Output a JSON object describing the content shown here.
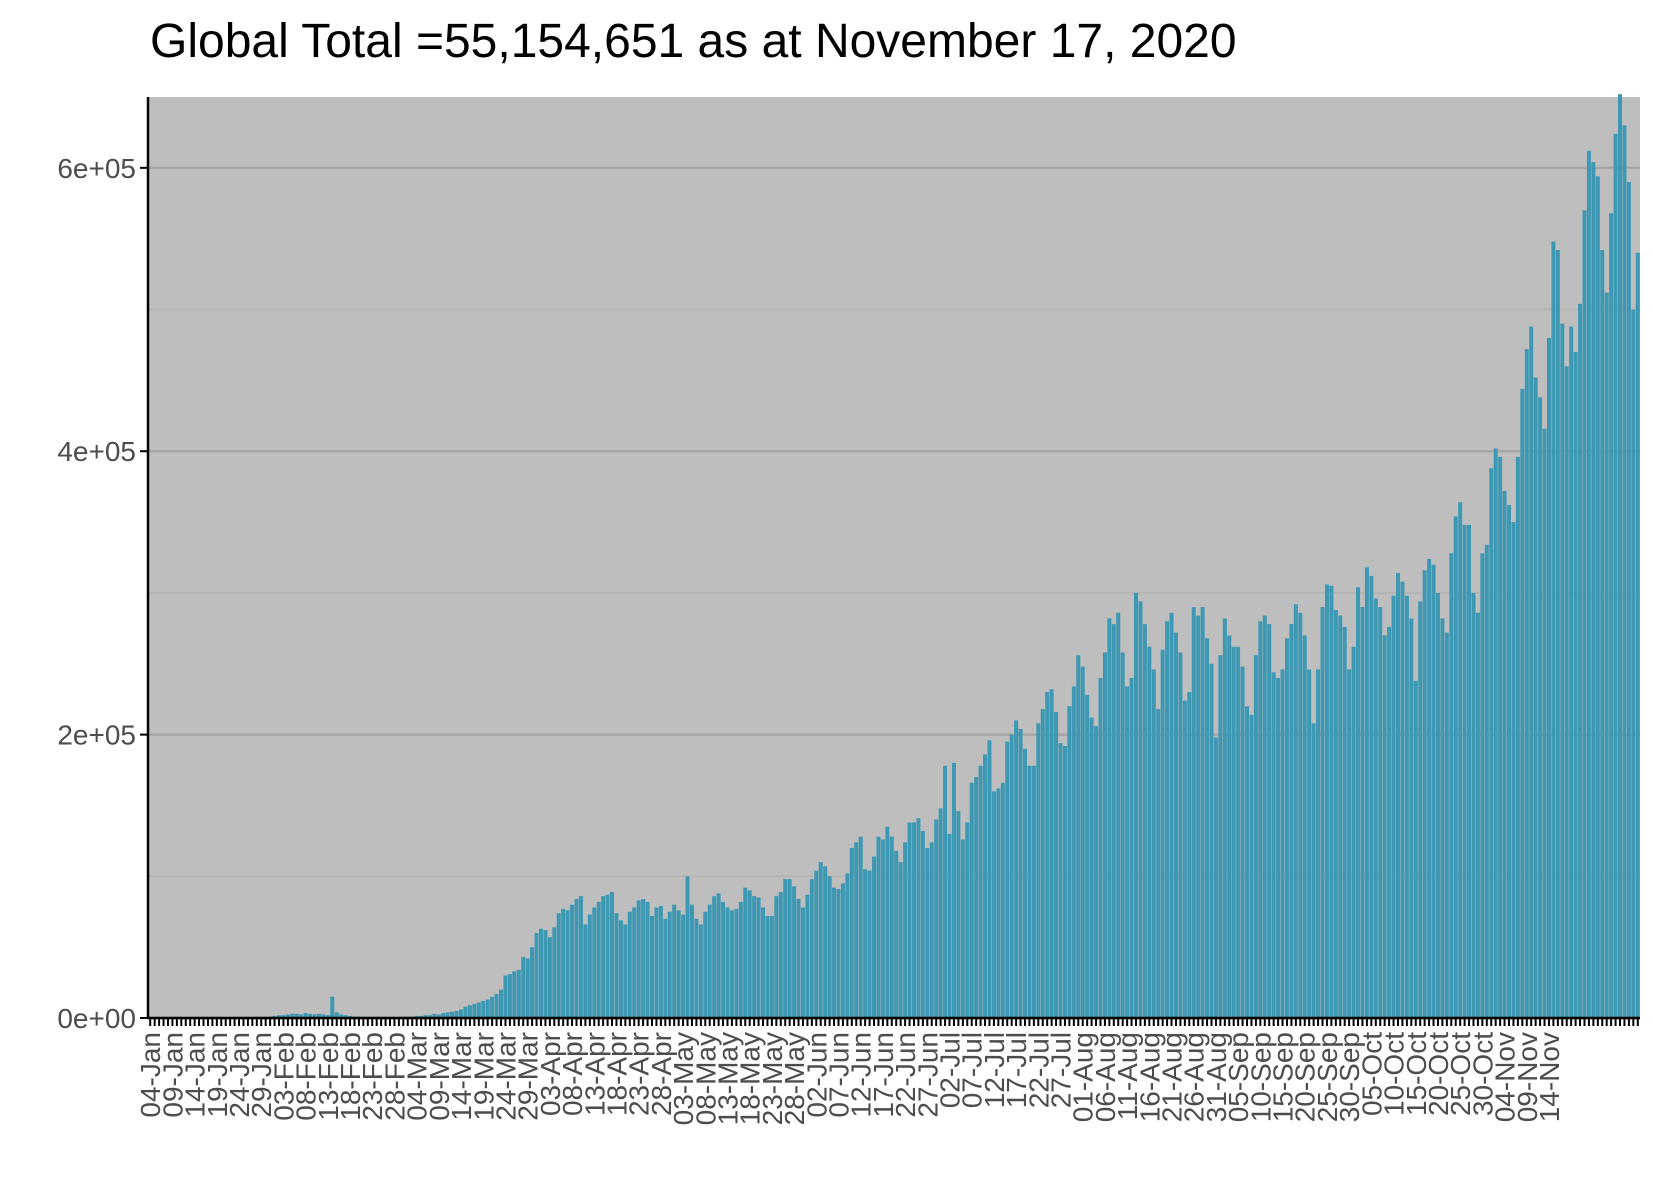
{
  "chart_data": {
    "type": "bar",
    "title": "Global Total =55,154,651 as at November 17, 2020",
    "xlabel": "",
    "ylabel": "",
    "ylim": [
      0,
      650000
    ],
    "y_ticks": [
      0,
      200000,
      400000,
      600000
    ],
    "y_tick_labels": [
      "0e+00",
      "2e+05",
      "4e+05",
      "6e+05"
    ],
    "grid": true,
    "legend": "none",
    "colors": {
      "bar": "#3d98b3",
      "panel": "#bebebe",
      "grid_major": "#a6a6a6",
      "grid_minor": "#b2b2b2",
      "axis": "#000000"
    },
    "x_start": "2020-01-04",
    "x_end": "2020-11-16",
    "x_tick_labels": [
      "04-Jan",
      "09-Jan",
      "14-Jan",
      "19-Jan",
      "24-Jan",
      "29-Jan",
      "03-Feb",
      "08-Feb",
      "13-Feb",
      "18-Feb",
      "23-Feb",
      "28-Feb",
      "04-Mar",
      "09-Mar",
      "14-Mar",
      "19-Mar",
      "24-Mar",
      "29-Mar",
      "03-Apr",
      "08-Apr",
      "13-Apr",
      "18-Apr",
      "23-Apr",
      "28-Apr",
      "03-May",
      "08-May",
      "13-May",
      "18-May",
      "23-May",
      "28-May",
      "02-Jun",
      "07-Jun",
      "12-Jun",
      "17-Jun",
      "22-Jun",
      "27-Jun",
      "02-Jul",
      "07-Jul",
      "12-Jul",
      "17-Jul",
      "22-Jul",
      "27-Jul",
      "01-Aug",
      "06-Aug",
      "11-Aug",
      "16-Aug",
      "21-Aug",
      "26-Aug",
      "31-Aug",
      "05-Sep",
      "10-Sep",
      "15-Sep",
      "20-Sep",
      "25-Sep",
      "30-Sep",
      "05-Oct",
      "10-Oct",
      "15-Oct",
      "20-Oct",
      "25-Oct",
      "30-Oct",
      "04-Nov",
      "09-Nov",
      "14-Nov"
    ],
    "series": [
      {
        "name": "",
        "values": [
          0,
          0,
          0,
          0,
          0,
          0,
          0,
          0,
          0,
          0,
          0,
          0,
          0,
          0,
          0,
          0,
          0,
          0,
          0,
          0,
          0,
          200,
          100,
          200,
          300,
          700,
          500,
          1000,
          1500,
          2000,
          2000,
          2500,
          3000,
          3000,
          2500,
          3500,
          3000,
          2500,
          3000,
          2500,
          2000,
          15000,
          4000,
          2500,
          2000,
          1500,
          1000,
          1000,
          500,
          500,
          500,
          500,
          500,
          500,
          500,
          500,
          500,
          1000,
          500,
          1000,
          1500,
          1500,
          2000,
          2000,
          3000,
          2500,
          3500,
          4000,
          4500,
          5000,
          6000,
          8000,
          9000,
          10000,
          11000,
          12000,
          13000,
          15000,
          17000,
          20000,
          30000,
          31000,
          33000,
          34000,
          43000,
          42000,
          50000,
          60000,
          63000,
          62000,
          57000,
          64000,
          74000,
          77000,
          76000,
          80000,
          84000,
          86000,
          66000,
          73000,
          78000,
          82000,
          86000,
          87000,
          89000,
          74000,
          69000,
          66000,
          75000,
          78000,
          83000,
          84000,
          82000,
          72000,
          78000,
          79000,
          70000,
          75000,
          80000,
          76000,
          73000,
          100000,
          80000,
          70000,
          66000,
          75000,
          80000,
          86000,
          88000,
          82000,
          78000,
          76000,
          77000,
          82000,
          92000,
          90000,
          86000,
          85000,
          78000,
          72000,
          72000,
          86000,
          89000,
          98000,
          98000,
          93000,
          84000,
          78000,
          87000,
          98000,
          104000,
          110000,
          107000,
          100000,
          92000,
          91000,
          95000,
          102000,
          120000,
          124000,
          128000,
          105000,
          104000,
          114000,
          128000,
          126000,
          135000,
          128000,
          118000,
          110000,
          124000,
          138000,
          138000,
          141000,
          132000,
          120000,
          124000,
          140000,
          148000,
          178000,
          130000,
          180000,
          146000,
          126000,
          138000,
          166000,
          170000,
          178000,
          186000,
          196000,
          160000,
          162000,
          166000,
          195000,
          200000,
          210000,
          204000,
          190000,
          178000,
          178000,
          208000,
          218000,
          230000,
          232000,
          216000,
          194000,
          192000,
          220000,
          234000,
          256000,
          248000,
          228000,
          212000,
          206000,
          240000,
          258000,
          282000,
          278000,
          286000,
          258000,
          234000,
          240000,
          300000,
          294000,
          278000,
          262000,
          246000,
          218000,
          260000,
          280000,
          286000,
          272000,
          258000,
          224000,
          230000,
          290000,
          284000,
          290000,
          268000,
          250000,
          198000,
          256000,
          282000,
          270000,
          262000,
          262000,
          248000,
          220000,
          214000,
          256000,
          280000,
          284000,
          278000,
          244000,
          240000,
          246000,
          268000,
          278000,
          292000,
          286000,
          270000,
          246000,
          208000,
          246000,
          290000,
          306000,
          305000,
          288000,
          284000,
          276000,
          246000,
          262000,
          304000,
          290000,
          318000,
          312000,
          296000,
          290000,
          270000,
          276000,
          298000,
          314000,
          308000,
          298000,
          282000,
          238000,
          294000,
          316000,
          324000,
          320000,
          300000,
          282000,
          272000,
          328000,
          354000,
          364000,
          348000,
          348000,
          300000,
          286000,
          328000,
          334000,
          388000,
          402000,
          396000,
          372000,
          362000,
          350000,
          396000,
          444000,
          472000,
          488000,
          452000,
          438000,
          416000,
          480000,
          548000,
          542000,
          490000,
          460000,
          488000,
          470000,
          504000,
          570000,
          612000,
          604000,
          594000,
          542000,
          512000,
          568000,
          624000,
          652000,
          630000,
          590000,
          500000,
          540000
        ]
      }
    ]
  }
}
